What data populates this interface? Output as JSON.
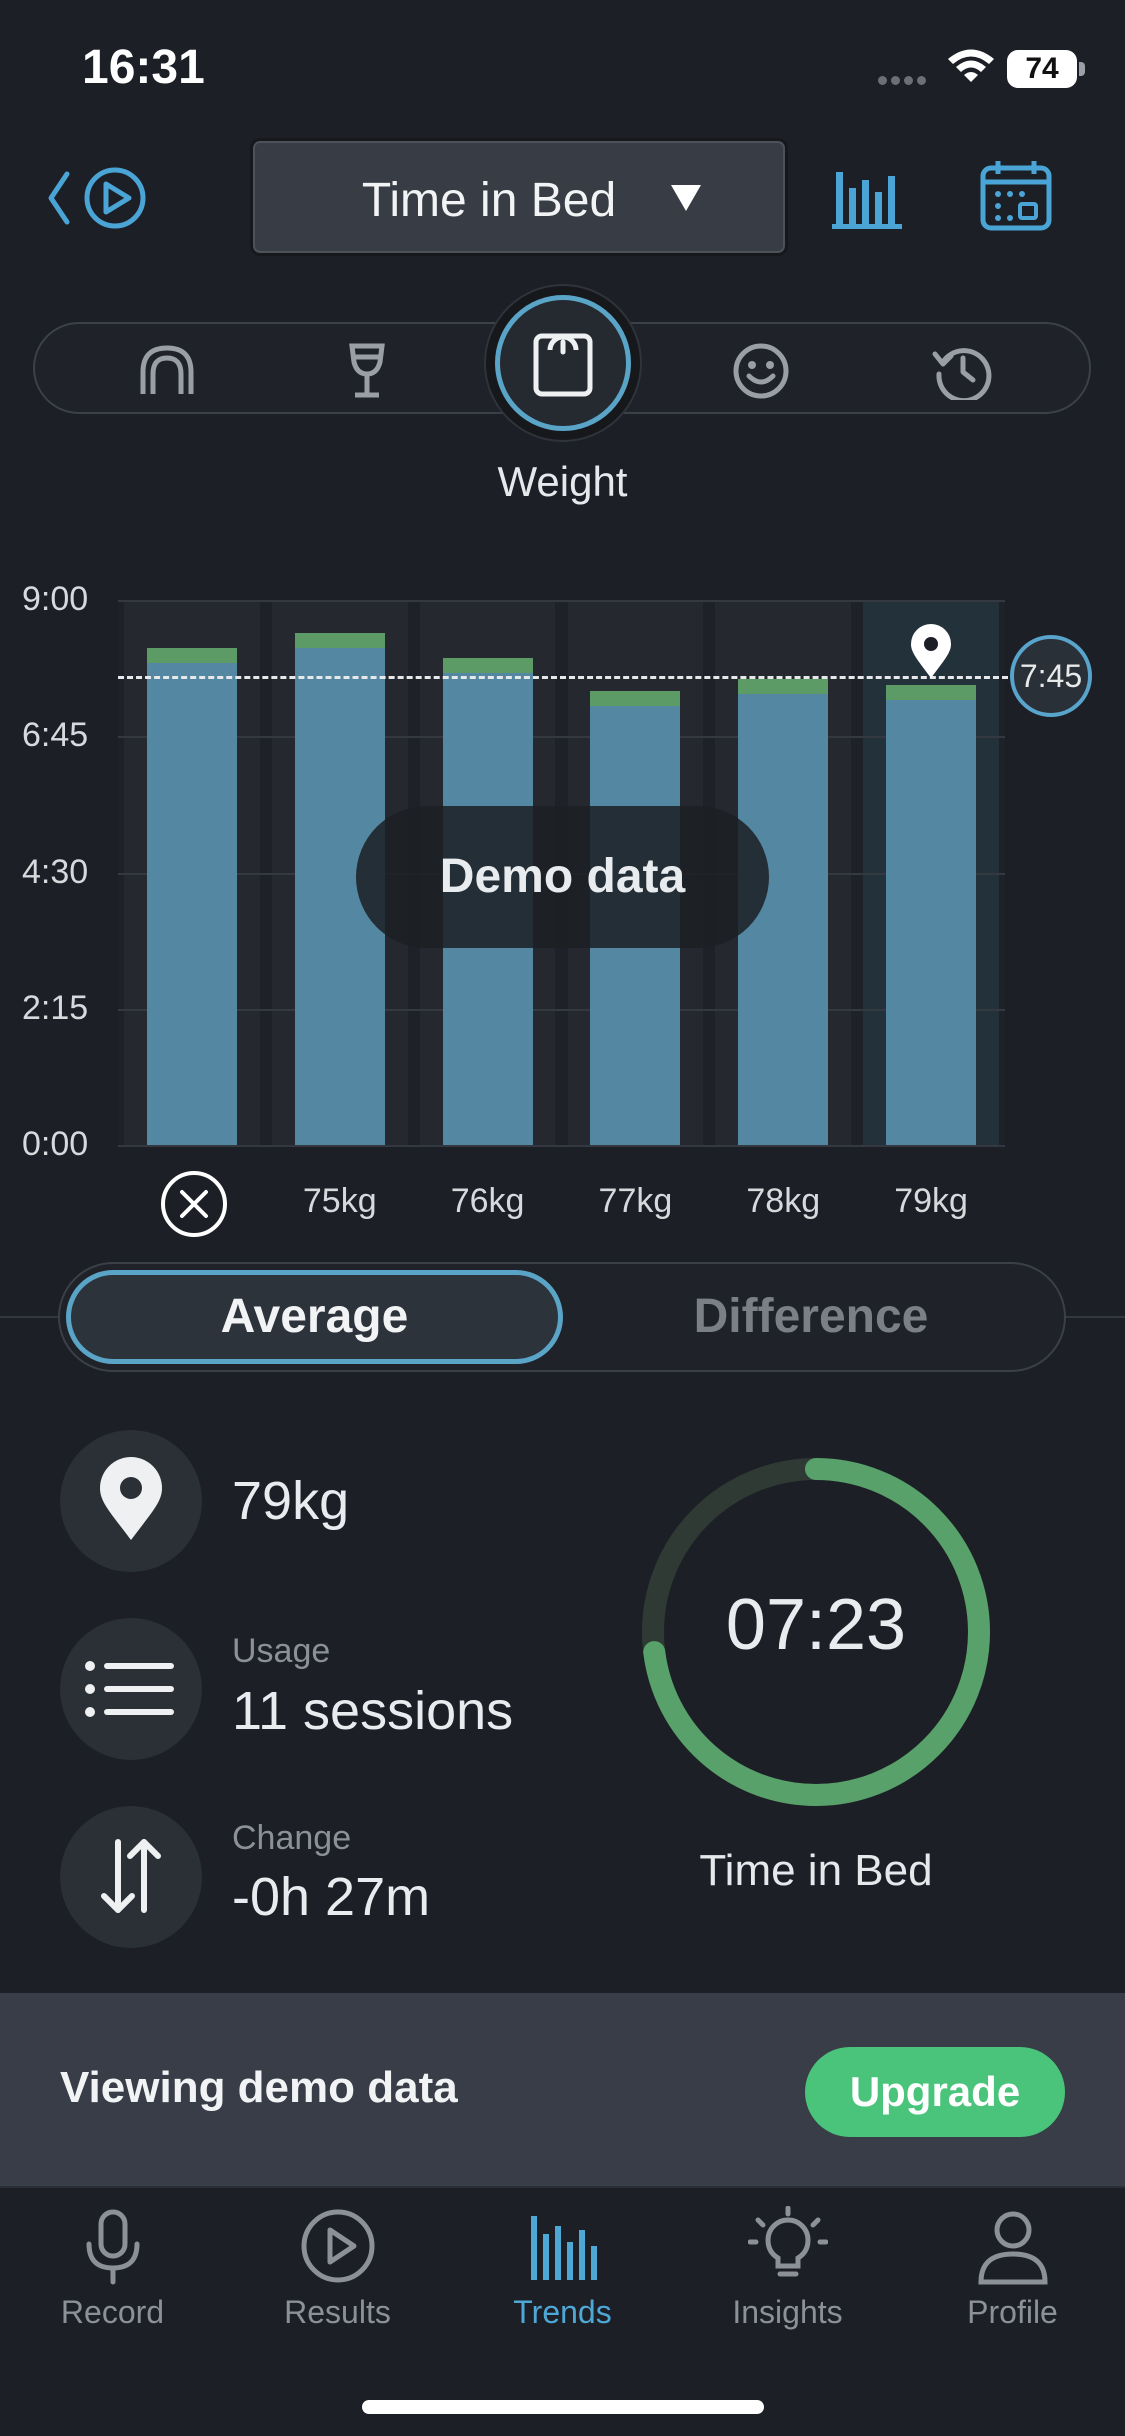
{
  "status_bar": {
    "time": "16:31",
    "battery": "74"
  },
  "header": {
    "title": "Time in Bed"
  },
  "filters": {
    "items": [
      "mouthpiece-icon",
      "wine-glass-icon",
      "scale-icon",
      "smiley-icon",
      "history-icon"
    ],
    "selected": "scale-icon",
    "selected_label": "Weight"
  },
  "chart_data": {
    "type": "bar",
    "categories": [
      "",
      "75kg",
      "76kg",
      "77kg",
      "78kg",
      "79kg"
    ],
    "series": [
      {
        "values": [
          8.2,
          8.45,
          8.05,
          7.5,
          7.7,
          7.6
        ]
      }
    ],
    "y_ticks": [
      "9:00",
      "6:45",
      "4:30",
      "2:15",
      "0:00"
    ],
    "ylim": [
      0,
      9
    ],
    "reference_line": {
      "value": 7.75,
      "label": "7:45"
    },
    "overlay_label": "Demo data",
    "colors": {
      "bar": "#5487a1",
      "cap": "#5c9a66",
      "accent": "#58a4cc"
    }
  },
  "segment": {
    "active": "Average",
    "inactive": "Difference"
  },
  "stats": {
    "weight_value": "79kg",
    "usage_caption": "Usage",
    "usage_value": "11 sessions",
    "change_caption": "Change",
    "change_value": "-0h 27m"
  },
  "ring": {
    "value": "07:23",
    "caption": "Time in Bed",
    "fraction": 0.73,
    "color": "#58a16a"
  },
  "banner": {
    "text": "Viewing demo data",
    "button": "Upgrade"
  },
  "tabs": [
    {
      "label": "Record",
      "icon": "microphone-icon"
    },
    {
      "label": "Results",
      "icon": "play-icon"
    },
    {
      "label": "Trends",
      "icon": "bar-chart-icon",
      "active": true
    },
    {
      "label": "Insights",
      "icon": "lightbulb-icon"
    },
    {
      "label": "Profile",
      "icon": "person-icon"
    }
  ]
}
